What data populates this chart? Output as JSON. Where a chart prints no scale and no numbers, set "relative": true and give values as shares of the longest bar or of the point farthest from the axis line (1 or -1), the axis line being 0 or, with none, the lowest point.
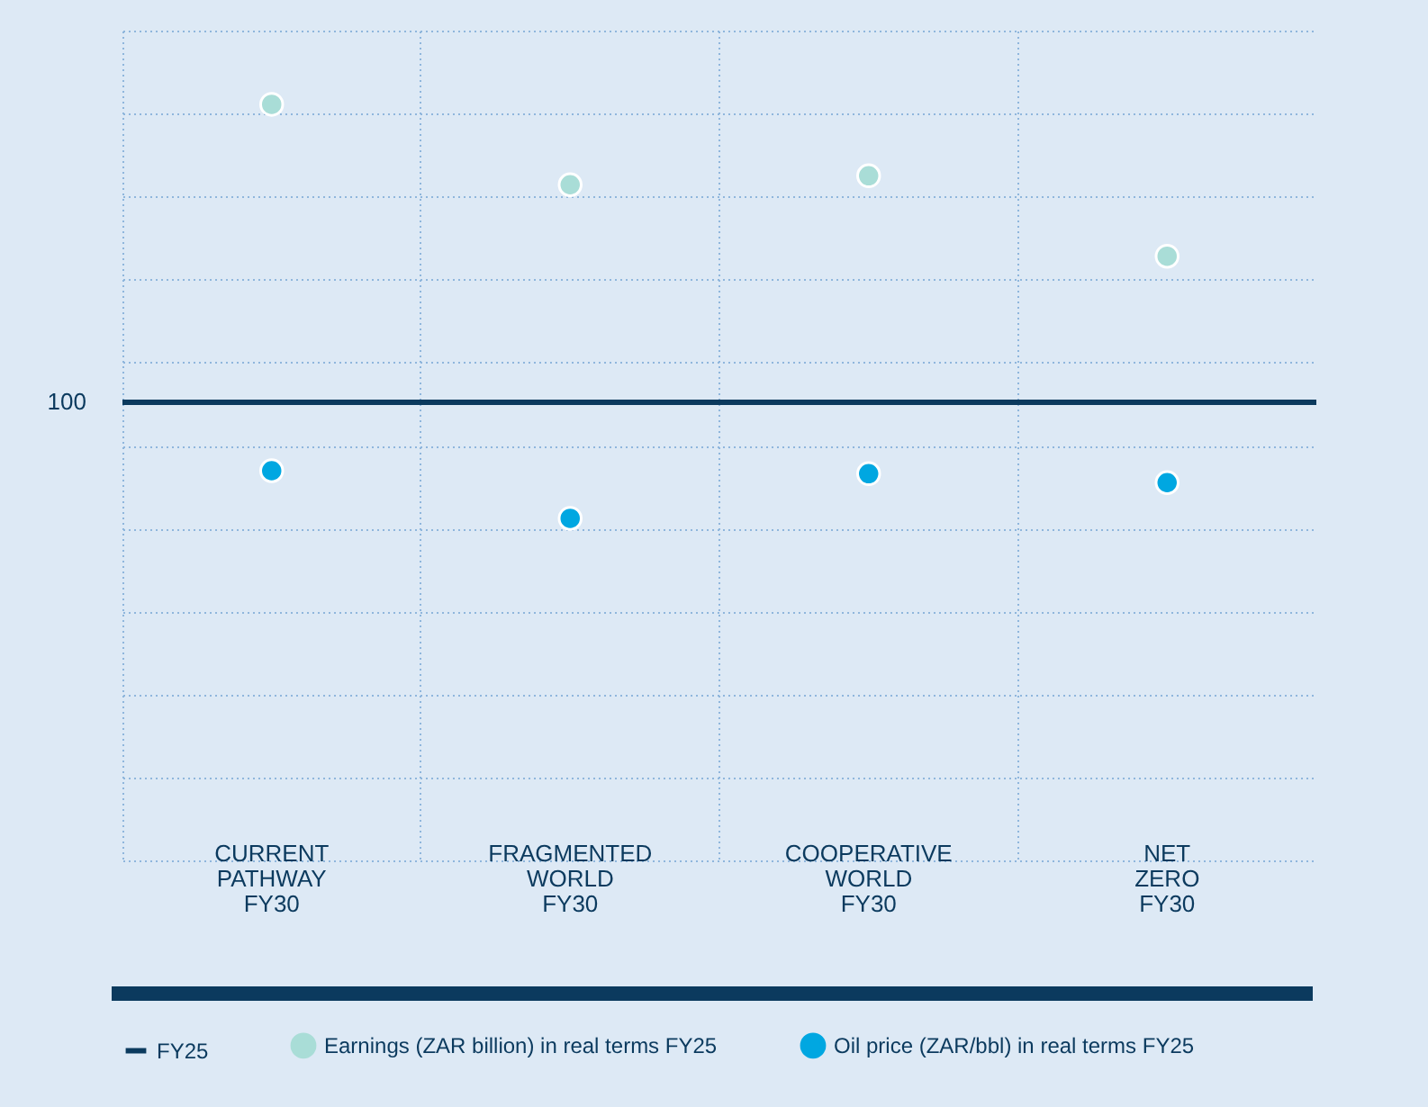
{
  "chart_data": {
    "type": "scatter",
    "relative": true,
    "grid": true,
    "legend": "bottom",
    "marker": "circle",
    "categories": [
      "CURRENT PATHWAY FY30",
      "FRAGMENTED WORLD FY30",
      "COOPERATIVE WORLD FY30",
      "NET ZERO FY30"
    ],
    "series": [
      {
        "name": "Earnings (ZAR billion) in real terms FY25",
        "color": "#a9ddd7",
        "values": [
          1,
          0.73,
          0.76,
          0.49
        ]
      },
      {
        "name": "Oil price (ZAR/bbl) in real terms FY25",
        "color": "#00a7e1",
        "values": [
          -0.23,
          -0.39,
          -0.24,
          -0.27
        ]
      }
    ],
    "ref_lines": [
      {
        "axis": "y",
        "value": 0,
        "label": "FY25",
        "color": "#0b3a5e",
        "line_style": "solid"
      }
    ],
    "annotations": [
      "100"
    ]
  }
}
